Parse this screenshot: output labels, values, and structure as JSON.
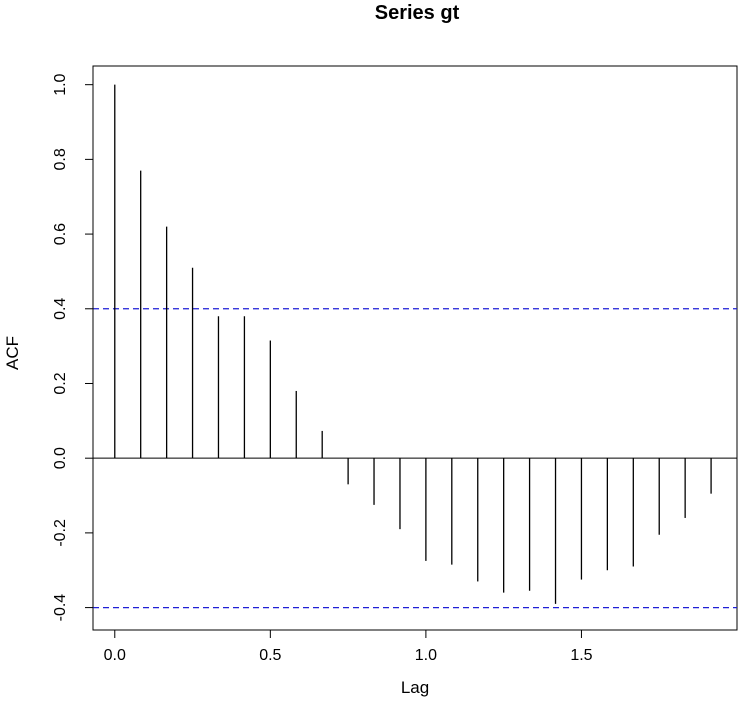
{
  "chart_data": {
    "type": "bar",
    "title": "Series  gt",
    "xlabel": "Lag",
    "ylabel": "ACF",
    "xlim": [
      -0.07,
      2.0
    ],
    "ylim": [
      -0.46,
      1.05
    ],
    "x_ticks": [
      "0.0",
      "0.5",
      "1.0",
      "1.5"
    ],
    "y_ticks": [
      "-0.4",
      "-0.2",
      "0.0",
      "0.2",
      "0.4",
      "0.6",
      "0.8",
      "1.0"
    ],
    "confidence_band": 0.4,
    "grid": false,
    "series": [
      {
        "x": [
          0.0,
          0.0833,
          0.1667,
          0.25,
          0.3333,
          0.4167,
          0.5,
          0.5833,
          0.6667,
          0.75,
          0.8333,
          0.9167,
          1.0,
          1.0833,
          1.1667,
          1.25,
          1.3333,
          1.4167,
          1.5,
          1.5833,
          1.6667,
          1.75,
          1.8333,
          1.9167
        ],
        "values": [
          1.0,
          0.77,
          0.62,
          0.51,
          0.38,
          0.38,
          0.315,
          0.18,
          0.073,
          -0.07,
          -0.125,
          -0.19,
          -0.275,
          -0.285,
          -0.33,
          -0.36,
          -0.355,
          -0.39,
          -0.325,
          -0.3,
          -0.29,
          -0.205,
          -0.16,
          -0.095
        ]
      }
    ]
  },
  "colors": {
    "bars": "#000000",
    "band": "#1f1fd6",
    "axis": "#000000"
  }
}
